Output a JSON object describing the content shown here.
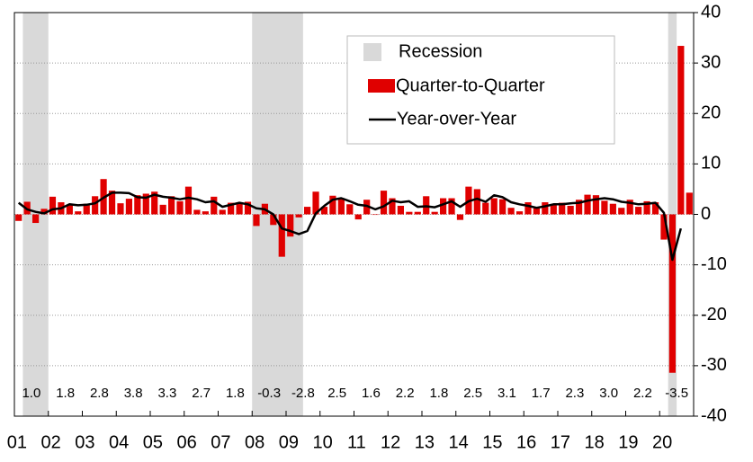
{
  "chart_data": {
    "type": "bar_line",
    "categories": [
      "01",
      null,
      null,
      null,
      "02",
      null,
      null,
      null,
      "03",
      null,
      null,
      null,
      "04",
      null,
      null,
      null,
      "05",
      null,
      null,
      null,
      "06",
      null,
      null,
      null,
      "07",
      null,
      null,
      null,
      "08",
      null,
      null,
      null,
      "09",
      null,
      null,
      null,
      "10",
      null,
      null,
      null,
      "11",
      null,
      null,
      null,
      "12",
      null,
      null,
      null,
      "13",
      null,
      null,
      null,
      "14",
      null,
      null,
      null,
      "15",
      null,
      null,
      null,
      "16",
      null,
      null,
      null,
      "17",
      null,
      null,
      null,
      "18",
      null,
      null,
      null,
      "19",
      null,
      null,
      null,
      "20",
      null,
      null,
      null
    ],
    "series": [
      {
        "name": "Quarter-to-Quarter",
        "color": "#e00000",
        "type": "bar",
        "values": [
          -1.3,
          2.5,
          -1.7,
          1.1,
          3.5,
          2.4,
          1.8,
          0.6,
          2.1,
          3.6,
          7.0,
          4.7,
          2.2,
          3.1,
          3.8,
          4.1,
          4.5,
          1.9,
          3.6,
          2.6,
          5.5,
          0.9,
          0.6,
          3.5,
          0.9,
          2.3,
          2.2,
          2.5,
          -2.3,
          2.1,
          -2.1,
          -8.4,
          -4.4,
          -0.6,
          1.5,
          4.5,
          1.5,
          3.7,
          3.0,
          2.0,
          -1.0,
          2.9,
          -0.1,
          4.7,
          3.2,
          1.7,
          0.5,
          0.5,
          3.6,
          0.5,
          3.2,
          3.2,
          -1.1,
          5.5,
          5.0,
          2.3,
          3.2,
          3.0,
          1.3,
          0.6,
          2.4,
          1.2,
          2.4,
          2.0,
          2.3,
          1.7,
          2.9,
          3.9,
          3.8,
          2.7,
          2.1,
          1.3,
          2.9,
          1.5,
          2.6,
          2.4,
          -5.0,
          -31.4,
          33.4,
          4.3
        ]
      },
      {
        "name": "Year-over-Year",
        "color": "#000000",
        "type": "line",
        "values": [
          2.3,
          1.0,
          0.5,
          0.2,
          1.0,
          1.2,
          2.0,
          1.8,
          1.9,
          2.2,
          3.3,
          4.3,
          4.3,
          4.2,
          3.4,
          3.3,
          3.9,
          3.5,
          3.3,
          3.0,
          3.3,
          3.0,
          2.4,
          2.6,
          1.5,
          1.9,
          2.3,
          2.0,
          1.2,
          1.0,
          0.0,
          -2.8,
          -3.3,
          -3.9,
          -3.3,
          0.2,
          1.7,
          2.9,
          3.2,
          2.6,
          1.9,
          1.7,
          1.0,
          1.6,
          2.7,
          2.4,
          2.6,
          1.5,
          1.6,
          1.4,
          2.0,
          2.6,
          1.5,
          2.6,
          3.1,
          2.5,
          3.8,
          3.4,
          2.4,
          2.0,
          1.7,
          1.3,
          1.6,
          2.0,
          2.0,
          2.2,
          2.3,
          2.7,
          3.0,
          3.2,
          3.0,
          2.5,
          2.3,
          2.0,
          2.1,
          2.3,
          0.3,
          -9.0,
          -2.8,
          null
        ]
      }
    ],
    "recession_label": "Recession",
    "recession_color": "#d9d9d9",
    "recessions": [
      [
        1,
        3
      ],
      [
        28,
        33
      ],
      [
        77,
        77
      ]
    ],
    "annual_values": [
      1.0,
      1.8,
      2.8,
      3.8,
      3.3,
      2.7,
      1.8,
      -0.3,
      -2.8,
      2.5,
      1.6,
      2.2,
      1.8,
      2.5,
      3.1,
      1.7,
      2.3,
      3.0,
      2.2,
      -3.5
    ],
    "annual_value_labels": [
      "1.0",
      "1.8",
      "2.8",
      "3.8",
      "3.3",
      "2.7",
      "1.8",
      "-0.3",
      "-2.8",
      "2.5",
      "1.6",
      "2.2",
      "1.8",
      "2.5",
      "3.1",
      "1.7",
      "2.3",
      "3.0",
      "2.2",
      "-3.5"
    ],
    "ylim": [
      -40,
      40
    ],
    "yticks": [
      -40,
      -30,
      -20,
      -10,
      0,
      10,
      20,
      30,
      40
    ],
    "grid": true
  }
}
